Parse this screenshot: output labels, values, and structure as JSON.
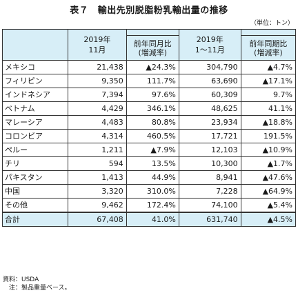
{
  "title": "表７　輸出先別脱脂粉乳輸出量の推移",
  "unit": "（単位：トン）",
  "header": {
    "period1_line1": "2019年",
    "period1_line2": "11月",
    "change1_line1": "前年同月比",
    "change1_line2": "(増減率)",
    "period2_line1": "2019年",
    "period2_line2": "1～11月",
    "change2_line1": "前年同期比",
    "change2_line2": "(増減率)"
  },
  "rows": [
    {
      "name": "メキシコ",
      "nov": "21,438",
      "nov_change": "▲24.3%",
      "ytd": "304,790",
      "ytd_change": "▲4.7%"
    },
    {
      "name": "フィリピン",
      "nov": "9,350",
      "nov_change": "111.7%",
      "ytd": "63,690",
      "ytd_change": "▲17.1%"
    },
    {
      "name": "インドネシア",
      "nov": "7,394",
      "nov_change": "97.6%",
      "ytd": "60,309",
      "ytd_change": "9.7%"
    },
    {
      "name": "ベトナム",
      "nov": "4,429",
      "nov_change": "346.1%",
      "ytd": "48,625",
      "ytd_change": "41.1%"
    },
    {
      "name": "マレーシア",
      "nov": "4,483",
      "nov_change": "80.8%",
      "ytd": "23,934",
      "ytd_change": "▲18.8%"
    },
    {
      "name": "コロンビア",
      "nov": "4,314",
      "nov_change": "460.5%",
      "ytd": "17,721",
      "ytd_change": "191.5%"
    },
    {
      "name": "ペルー",
      "nov": "1,211",
      "nov_change": "▲7.9%",
      "ytd": "12,103",
      "ytd_change": "▲10.9%"
    },
    {
      "name": "チリ",
      "nov": "594",
      "nov_change": "13.5%",
      "ytd": "10,300",
      "ytd_change": "▲1.7%"
    },
    {
      "name": "パキスタン",
      "nov": "1,413",
      "nov_change": "44.9%",
      "ytd": "8,941",
      "ytd_change": "▲47.6%"
    },
    {
      "name": "中国",
      "nov": "3,320",
      "nov_change": "310.0%",
      "ytd": "7,228",
      "ytd_change": "▲64.9%"
    },
    {
      "name": "その他",
      "nov": "9,462",
      "nov_change": "172.4%",
      "ytd": "74,100",
      "ytd_change": "▲5.4%"
    }
  ],
  "total": {
    "name": "合計",
    "nov": "67,408",
    "nov_change": "41.0%",
    "ytd": "631,740",
    "ytd_change": "▲4.5%"
  },
  "source_line1": "資料：USDA",
  "source_line2": "　注：製品重量ベース。"
}
